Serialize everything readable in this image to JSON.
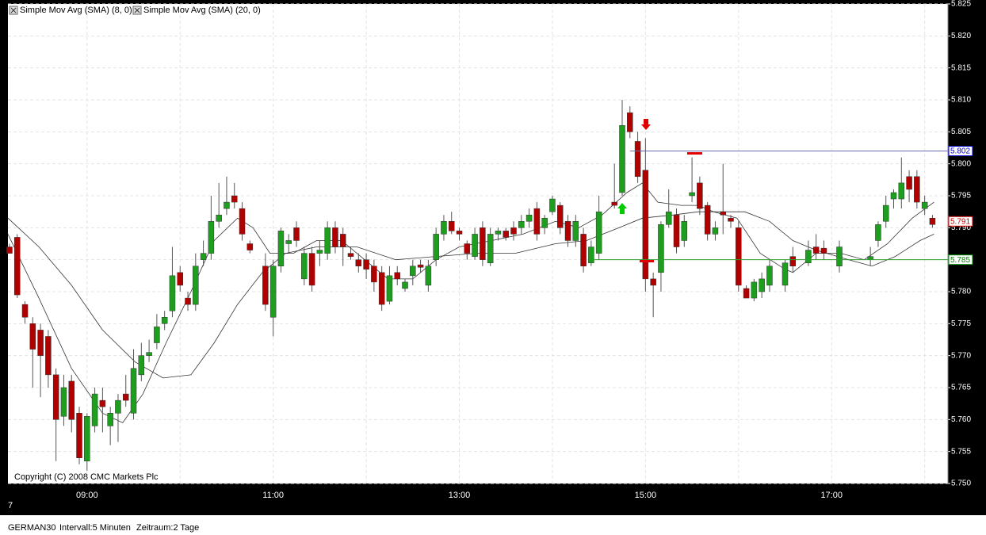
{
  "chart_data": {
    "type": "candlestick",
    "legend": [
      "Simple Mov Avg (SMA) (8, 0)",
      "Simple Mov Avg (SMA) (20, 0)"
    ],
    "copyright": "Copyright (C) 2008 CMC Markets Plc",
    "corner_label": "7",
    "footer": {
      "symbol": "GERMAN30",
      "interval": "Intervall:5 Minuten",
      "range": "Zeitraum:2 Tage"
    },
    "up_color": "#1e9e1e",
    "down_color": "#b00000",
    "x": [
      490,
      495,
      500,
      505,
      510,
      515,
      520,
      525,
      530,
      535,
      540,
      545,
      550,
      555,
      560,
      565,
      570,
      575,
      580,
      585,
      590,
      595,
      600,
      605,
      610,
      615,
      620,
      625,
      630,
      635,
      640,
      645,
      655,
      660,
      665,
      670,
      675,
      680,
      685,
      690,
      695,
      700,
      705,
      710,
      715,
      720,
      725,
      730,
      735,
      740,
      745,
      750,
      755,
      760,
      765,
      770,
      775,
      780,
      785,
      790,
      795,
      800,
      805,
      810,
      815,
      820,
      825,
      830,
      835,
      840,
      845,
      850,
      855,
      860,
      865,
      870,
      880,
      885,
      890,
      895,
      900,
      905,
      910,
      915,
      920,
      925,
      930,
      935,
      940,
      945,
      950,
      955,
      960,
      965,
      970,
      975,
      980,
      990,
      995,
      1005,
      1010,
      1015,
      1025,
      1045,
      1050,
      1055,
      1060,
      1065,
      1070,
      1075,
      1080,
      1085
    ],
    "open": [
      5.787,
      5.7885,
      5.778,
      5.775,
      5.774,
      5.773,
      5.767,
      5.7605,
      5.766,
      5.761,
      5.7535,
      5.759,
      5.763,
      5.759,
      5.761,
      5.764,
      5.761,
      5.767,
      5.77,
      5.772,
      5.775,
      5.777,
      5.783,
      5.779,
      5.778,
      5.785,
      5.786,
      5.791,
      5.793,
      5.795,
      5.793,
      5.7875,
      5.784,
      5.776,
      5.784,
      5.7875,
      5.79,
      5.782,
      5.786,
      5.786,
      5.786,
      5.79,
      5.789,
      5.786,
      5.785,
      5.785,
      5.784,
      5.783,
      5.7785,
      5.783,
      5.7805,
      5.7825,
      5.7842,
      5.781,
      5.785,
      5.789,
      5.791,
      5.7895,
      5.7875,
      5.7855,
      5.79,
      5.7845,
      5.789,
      5.7895,
      5.79,
      5.79,
      5.791,
      5.793,
      5.79,
      5.7925,
      5.7935,
      5.791,
      5.788,
      5.789,
      5.7845,
      5.786,
      5.794,
      5.7955,
      5.808,
      5.8035,
      5.799,
      5.782,
      5.783,
      5.7905,
      5.792,
      5.788,
      5.795,
      5.797,
      5.7935,
      5.789,
      5.7925,
      5.7915,
      5.79,
      5.7805,
      5.779,
      5.78,
      5.781,
      5.781,
      5.7855,
      5.7845,
      5.787,
      5.7868,
      5.784,
      5.785,
      5.788,
      5.791,
      5.7945,
      5.7945,
      5.798,
      5.798,
      5.793,
      5.7915
    ],
    "high": [
      5.7875,
      5.789,
      5.7785,
      5.776,
      5.775,
      5.774,
      5.768,
      5.767,
      5.767,
      5.762,
      5.761,
      5.765,
      5.765,
      5.762,
      5.764,
      5.767,
      5.771,
      5.772,
      5.7725,
      5.7765,
      5.777,
      5.787,
      5.784,
      5.78,
      5.786,
      5.788,
      5.795,
      5.797,
      5.798,
      5.797,
      5.794,
      5.788,
      5.786,
      5.785,
      5.79,
      5.789,
      5.791,
      5.787,
      5.787,
      5.788,
      5.791,
      5.791,
      5.79,
      5.787,
      5.786,
      5.786,
      5.785,
      5.784,
      5.784,
      5.784,
      5.782,
      5.785,
      5.785,
      5.785,
      5.79,
      5.792,
      5.7925,
      5.79,
      5.788,
      5.79,
      5.791,
      5.79,
      5.79,
      5.79,
      5.791,
      5.792,
      5.793,
      5.794,
      5.792,
      5.795,
      5.794,
      5.792,
      5.792,
      5.79,
      5.788,
      5.795,
      5.8,
      5.81,
      5.809,
      5.805,
      5.804,
      5.783,
      5.791,
      5.796,
      5.793,
      5.792,
      5.801,
      5.798,
      5.794,
      5.791,
      5.8,
      5.792,
      5.791,
      5.781,
      5.782,
      5.783,
      5.785,
      5.785,
      5.787,
      5.788,
      5.789,
      5.788,
      5.788,
      5.787,
      5.791,
      5.795,
      5.796,
      5.801,
      5.799,
      5.799,
      5.795,
      5.792
    ],
    "low": [
      5.786,
      5.779,
      5.775,
      5.765,
      5.7635,
      5.765,
      5.7535,
      5.759,
      5.758,
      5.753,
      5.752,
      5.758,
      5.758,
      5.756,
      5.7565,
      5.762,
      5.76,
      5.766,
      5.769,
      5.771,
      5.774,
      5.776,
      5.78,
      5.777,
      5.777,
      5.784,
      5.785,
      5.79,
      5.792,
      5.793,
      5.788,
      5.786,
      5.777,
      5.773,
      5.783,
      5.786,
      5.787,
      5.781,
      5.78,
      5.784,
      5.785,
      5.786,
      5.784,
      5.785,
      5.783,
      5.782,
      5.78,
      5.777,
      5.778,
      5.781,
      5.78,
      5.781,
      5.783,
      5.78,
      5.784,
      5.788,
      5.789,
      5.788,
      5.785,
      5.785,
      5.784,
      5.784,
      5.788,
      5.788,
      5.788,
      5.789,
      5.79,
      5.788,
      5.789,
      5.792,
      5.789,
      5.787,
      5.787,
      5.783,
      5.784,
      5.785,
      5.793,
      5.795,
      5.804,
      5.797,
      5.78,
      5.776,
      5.78,
      5.79,
      5.786,
      5.787,
      5.794,
      5.792,
      5.788,
      5.788,
      5.789,
      5.79,
      5.78,
      5.779,
      5.7785,
      5.779,
      5.78,
      5.78,
      5.783,
      5.784,
      5.785,
      5.785,
      5.783,
      5.784,
      5.787,
      5.79,
      5.793,
      5.793,
      5.794,
      5.793,
      5.792,
      5.79
    ],
    "close": [
      5.786,
      5.7795,
      5.776,
      5.771,
      5.77,
      5.767,
      5.76,
      5.765,
      5.76,
      5.754,
      5.7605,
      5.764,
      5.762,
      5.761,
      5.763,
      5.763,
      5.768,
      5.77,
      5.7705,
      5.7745,
      5.776,
      5.7825,
      5.781,
      5.778,
      5.784,
      5.786,
      5.791,
      5.792,
      5.794,
      5.794,
      5.789,
      5.7865,
      5.778,
      5.784,
      5.7895,
      5.788,
      5.788,
      5.786,
      5.781,
      5.7865,
      5.79,
      5.787,
      5.787,
      5.7855,
      5.784,
      5.7835,
      5.7815,
      5.778,
      5.7825,
      5.782,
      5.7815,
      5.784,
      5.7838,
      5.784,
      5.789,
      5.791,
      5.7895,
      5.789,
      5.786,
      5.789,
      5.785,
      5.789,
      5.7895,
      5.7885,
      5.789,
      5.791,
      5.792,
      5.789,
      5.7915,
      5.7945,
      5.79,
      5.788,
      5.791,
      5.784,
      5.787,
      5.7925,
      5.7935,
      5.806,
      5.805,
      5.798,
      5.782,
      5.781,
      5.7905,
      5.7925,
      5.787,
      5.791,
      5.7955,
      5.793,
      5.789,
      5.79,
      5.792,
      5.791,
      5.781,
      5.779,
      5.7815,
      5.782,
      5.784,
      5.7845,
      5.784,
      5.7865,
      5.786,
      5.786,
      5.787,
      5.7855,
      5.7905,
      5.7935,
      5.7955,
      5.797,
      5.796,
      5.794,
      5.794,
      5.7905
    ],
    "series": [
      {
        "name": "Simple Mov Avg (SMA) (8, 0)",
        "color": "#333333",
        "x": [
          489,
          509,
          530,
          550,
          563,
          576,
          591,
          607,
          622,
          637,
          647,
          658,
          673,
          688,
          704,
          719,
          734,
          750,
          765,
          780,
          801,
          821,
          842,
          857,
          872,
          888,
          898,
          908,
          923,
          934,
          944,
          959,
          974,
          990,
          995,
          1010,
          1026,
          1041,
          1056,
          1072,
          1086
        ],
        "values": [
          5.789,
          5.779,
          5.768,
          5.761,
          5.7595,
          5.764,
          5.772,
          5.78,
          5.788,
          5.7915,
          5.79,
          5.786,
          5.786,
          5.788,
          5.788,
          5.785,
          5.782,
          5.782,
          5.785,
          5.787,
          5.788,
          5.789,
          5.791,
          5.79,
          5.792,
          5.7955,
          5.797,
          5.794,
          5.7935,
          5.7935,
          5.7925,
          5.7915,
          5.786,
          5.7835,
          5.783,
          5.786,
          5.786,
          5.785,
          5.7875,
          5.7915,
          5.794
        ]
      },
      {
        "name": "Simple Mov Avg (SMA) (20, 0)",
        "color": "#333333",
        "x": [
          489,
          509,
          530,
          550,
          571,
          589,
          607,
          622,
          637,
          653,
          668,
          688,
          714,
          739,
          765,
          791,
          816,
          842,
          862,
          883,
          898,
          918,
          934,
          949,
          964,
          980,
          995,
          1010,
          1031,
          1046,
          1061,
          1077,
          1086
        ],
        "values": [
          5.7915,
          5.787,
          5.781,
          5.774,
          5.769,
          5.7665,
          5.767,
          5.772,
          5.778,
          5.783,
          5.786,
          5.787,
          5.787,
          5.785,
          5.7855,
          5.786,
          5.786,
          5.7875,
          5.788,
          5.79,
          5.7915,
          5.792,
          5.7925,
          5.7925,
          5.7925,
          5.791,
          5.788,
          5.7865,
          5.785,
          5.784,
          5.7855,
          5.788,
          5.789
        ]
      }
    ],
    "hlines": [
      {
        "value": 5.802,
        "from": 890,
        "color": "#6a6ab0"
      },
      {
        "value": 5.785,
        "from": 867,
        "color": "#2e9e2e"
      }
    ],
    "price_labels": [
      {
        "value": 5.802,
        "color": "#0000cc"
      },
      {
        "value": 5.791,
        "color": "#cc0000"
      },
      {
        "value": 5.785,
        "color": "#008800"
      }
    ],
    "xlim": [
      489,
      1095
    ],
    "xticks": [
      {
        "value": 540,
        "label": "09:00"
      },
      {
        "value": 660,
        "label": "11:00"
      },
      {
        "value": 780,
        "label": "13:00"
      },
      {
        "value": 900,
        "label": "15:00"
      },
      {
        "value": 1020,
        "label": "17:00"
      }
    ],
    "xminor": [
      600,
      720,
      840,
      960,
      1080
    ],
    "ylim": [
      5.75,
      5.825
    ],
    "yticks": [
      {
        "value": 5.75,
        "label": "5.750"
      },
      5.755,
      {
        "value": 5.76,
        "label": "5.760"
      },
      5.765,
      {
        "value": 5.77,
        "label": "5.770"
      },
      5.775,
      {
        "value": 5.78,
        "label": "5.780"
      },
      5.785,
      {
        "value": 5.79,
        "label": "5.790"
      },
      5.795,
      {
        "value": 5.8,
        "label": "5.800"
      },
      5.805,
      {
        "value": 5.81,
        "label": "5.810"
      },
      5.815,
      {
        "value": 5.82,
        "label": "5.820"
      },
      5.825
    ],
    "grid": true
  }
}
